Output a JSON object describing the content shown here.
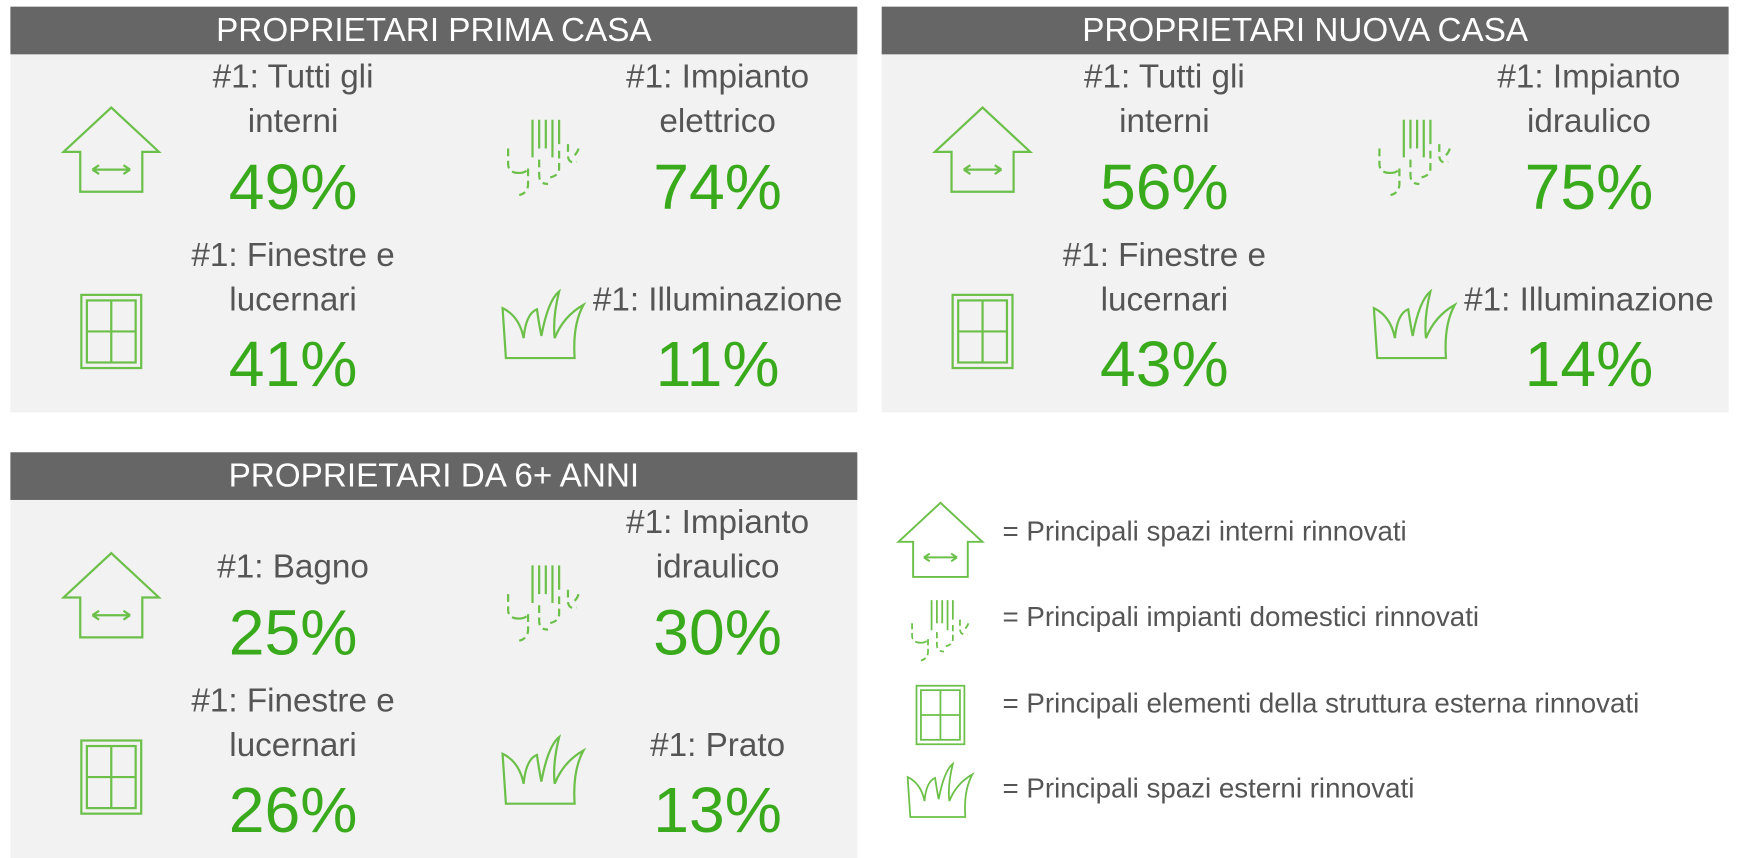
{
  "panels": [
    {
      "title": "PROPRIETARI PRIMA CASA",
      "items": [
        {
          "label": [
            "#1: Tutti gli",
            "interni"
          ],
          "value": "49%"
        },
        {
          "label": [
            "#1: Impianto",
            "elettrico"
          ],
          "value": "74%"
        },
        {
          "label": [
            "#1: Finestre e",
            "lucernari"
          ],
          "value": "41%"
        },
        {
          "label": [
            "#1: Illuminazione"
          ],
          "value": "11%"
        }
      ]
    },
    {
      "title": "PROPRIETARI NUOVA CASA",
      "items": [
        {
          "label": [
            "#1: Tutti gli",
            "interni"
          ],
          "value": "56%"
        },
        {
          "label": [
            "#1: Impianto",
            "idraulico"
          ],
          "value": "75%"
        },
        {
          "label": [
            "#1: Finestre e",
            "lucernari"
          ],
          "value": "43%"
        },
        {
          "label": [
            "#1: Illuminazione"
          ],
          "value": "14%"
        }
      ]
    },
    {
      "title": "PROPRIETARI DA 6+ ANNI",
      "items": [
        {
          "label": [
            "#1: Bagno"
          ],
          "value": "25%"
        },
        {
          "label": [
            "#1: Impianto",
            "idraulico"
          ],
          "value": "30%"
        },
        {
          "label": [
            "#1: Finestre e",
            "lucernari"
          ],
          "value": "26%"
        },
        {
          "label": [
            "#1: Prato"
          ],
          "value": "13%"
        }
      ]
    }
  ],
  "legend": [
    "= Principali spazi interni rinnovati",
    "= Principali impianti domestici rinnovati",
    "= Principali elementi della struttura esterna rinnovati",
    "= Principali spazi esterni rinnovati"
  ]
}
